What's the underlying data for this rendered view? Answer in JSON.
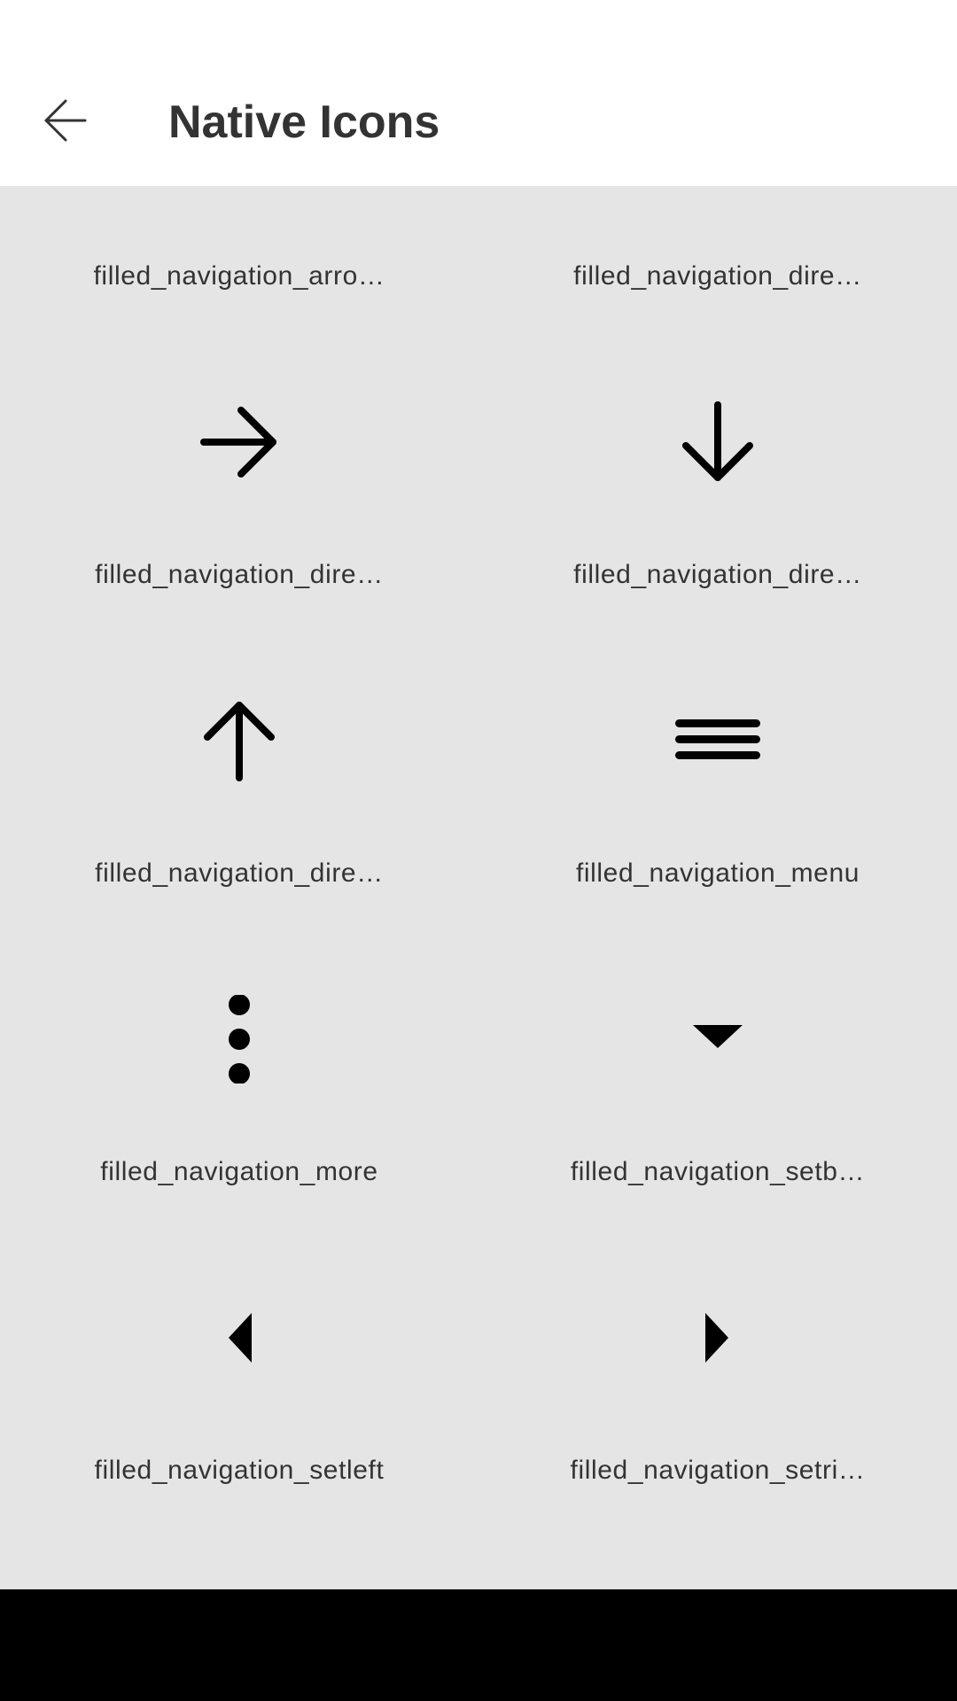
{
  "header": {
    "title": "Native Icons",
    "back_icon": "arrow-back-icon"
  },
  "colors": {
    "header_bg": "#ffffff",
    "content_bg": "#e5e5e5",
    "icon": "#000000",
    "label": "#333333",
    "title": "#333333",
    "system_nav_bar": "#000000"
  },
  "icons": [
    {
      "label": "filled_navigation_arro…",
      "icon": "arrow-partially-visible-icon"
    },
    {
      "label": "filled_navigation_dire…",
      "icon": "direction-partially-visible-icon"
    },
    {
      "label": "filled_navigation_dire…",
      "icon": "arrow-right-icon"
    },
    {
      "label": "filled_navigation_dire…",
      "icon": "arrow-down-icon"
    },
    {
      "label": "filled_navigation_dire…",
      "icon": "arrow-up-icon"
    },
    {
      "label": "filled_navigation_menu",
      "icon": "menu-icon"
    },
    {
      "label": "filled_navigation_more",
      "icon": "more-vertical-icon"
    },
    {
      "label": "filled_navigation_setb…",
      "icon": "triangle-down-icon"
    },
    {
      "label": "filled_navigation_setleft",
      "icon": "triangle-left-icon"
    },
    {
      "label": "filled_navigation_setri…",
      "icon": "triangle-right-icon"
    }
  ]
}
